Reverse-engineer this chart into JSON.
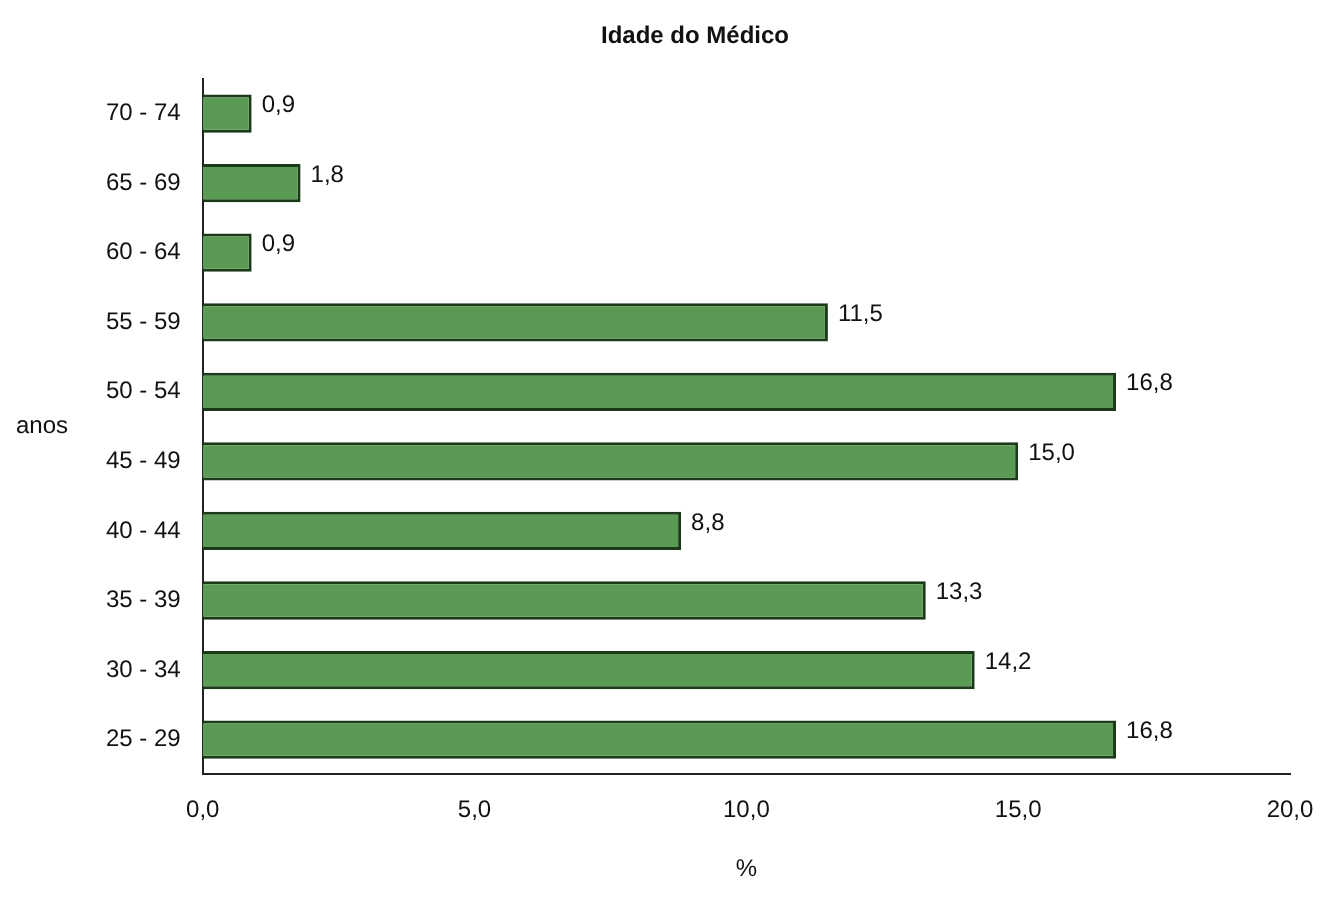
{
  "chart_data": {
    "type": "bar",
    "orientation": "horizontal",
    "title": "Idade do Médico",
    "xlabel": "%",
    "ylabel": "anos",
    "categories": [
      "70 - 74",
      "65 - 69",
      "60 - 64",
      "55 - 59",
      "50 - 54",
      "45 - 49",
      "40 - 44",
      "35 - 39",
      "30 - 34",
      "25 - 29"
    ],
    "values": [
      0.9,
      1.8,
      0.9,
      11.5,
      16.8,
      15.0,
      8.8,
      13.3,
      14.2,
      16.8
    ],
    "value_labels": [
      "0,9",
      "1,8",
      "0,9",
      "11,5",
      "16,8",
      "15,0",
      "8,8",
      "13,3",
      "14,2",
      "16,8"
    ],
    "color": "#5b9a55",
    "xlim": [
      0,
      20
    ],
    "xticks": [
      {
        "value": 0,
        "label": "0,0"
      },
      {
        "value": 5,
        "label": "5,0"
      },
      {
        "value": 10,
        "label": "10,0"
      },
      {
        "value": 15,
        "label": "15,0"
      },
      {
        "value": 20,
        "label": "20,0"
      }
    ],
    "grid": false,
    "legend": false
  }
}
